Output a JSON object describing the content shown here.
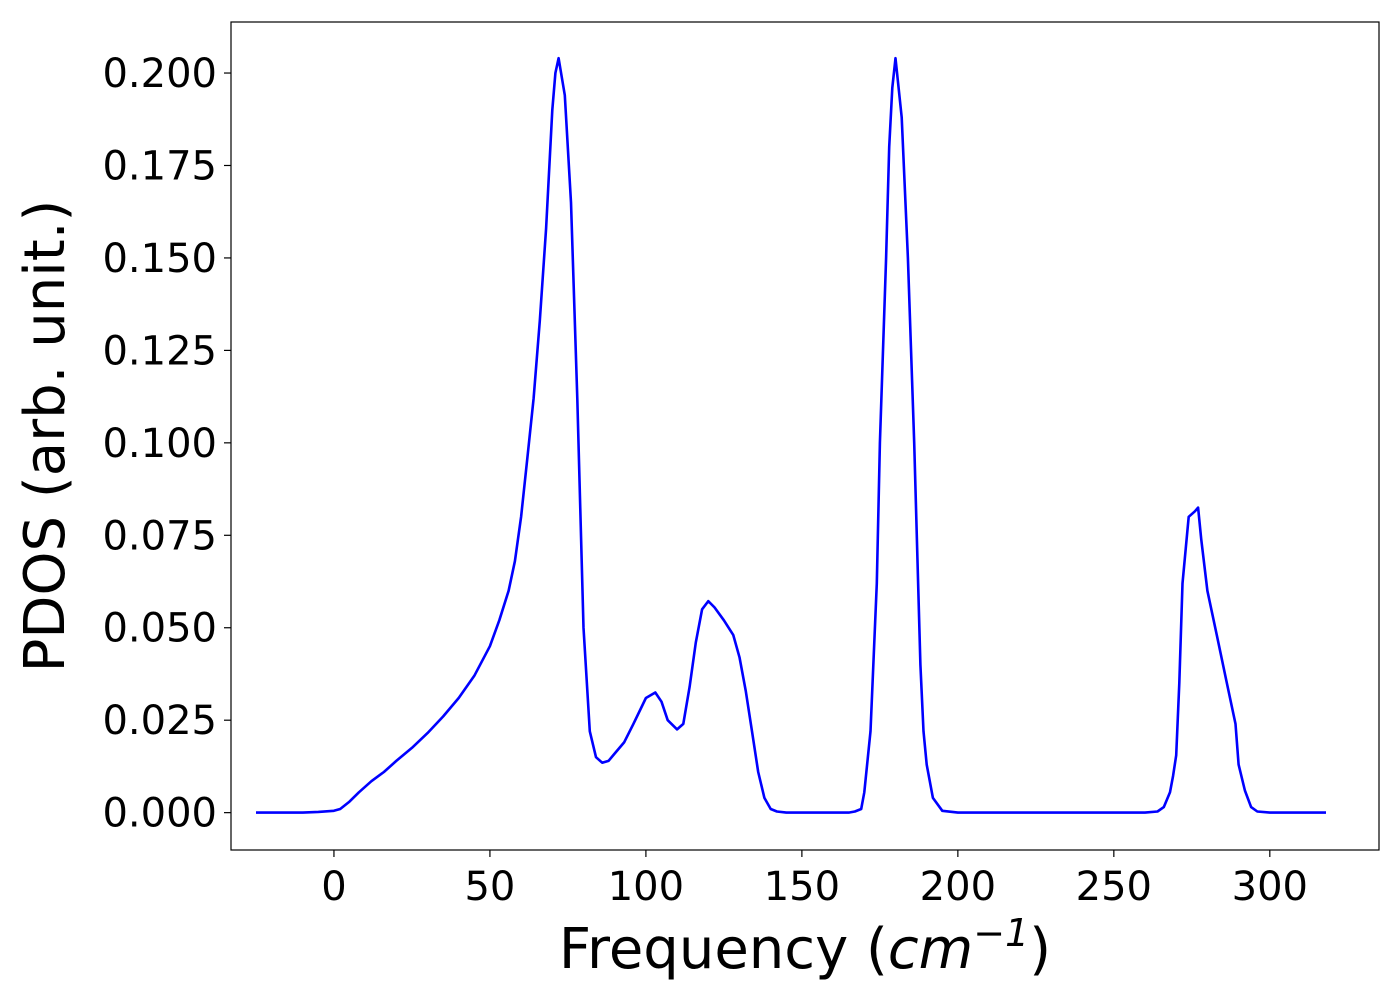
{
  "chart_data": {
    "type": "line",
    "title": "",
    "xlabel": "Frequency",
    "xlabel_unit_base": "cm",
    "xlabel_unit_exp": "−1",
    "ylabel": "PDOS (arb. unit.)",
    "xlim": [
      -33,
      335
    ],
    "ylim": [
      -0.0101,
      0.2138
    ],
    "xticks": [
      0,
      50,
      100,
      150,
      200,
      250,
      300
    ],
    "xtick_labels": [
      "0",
      "50",
      "100",
      "150",
      "200",
      "250",
      "300"
    ],
    "yticks": [
      0.0,
      0.025,
      0.05,
      0.075,
      0.1,
      0.125,
      0.15,
      0.175,
      0.2
    ],
    "ytick_labels": [
      "0.000",
      "0.025",
      "0.050",
      "0.075",
      "0.100",
      "0.125",
      "0.150",
      "0.175",
      "0.200"
    ],
    "grid": false,
    "legend": false,
    "series": [
      {
        "color": "#0000ff",
        "x": [
          -25,
          -10,
          -5,
          0,
          2,
          5,
          8,
          12,
          16,
          20,
          25,
          30,
          35,
          40,
          45,
          50,
          53,
          56,
          58,
          60,
          62,
          64,
          66,
          68,
          70,
          71,
          72,
          74,
          76,
          78,
          80,
          82,
          84,
          86,
          88,
          90,
          93,
          96,
          100,
          103,
          105,
          107,
          110,
          112,
          114,
          116,
          118,
          120,
          122,
          125,
          128,
          130,
          132,
          134,
          136,
          138,
          140,
          142,
          145,
          150,
          160,
          165,
          167,
          169,
          170,
          172,
          174,
          175,
          177,
          178,
          179,
          180,
          182,
          184,
          186,
          188,
          189,
          190,
          192,
          195,
          200,
          210,
          220,
          240,
          260,
          264,
          266,
          268,
          269,
          270,
          271,
          272,
          274,
          276,
          277,
          278,
          280,
          283,
          286,
          289,
          290,
          292,
          294,
          296,
          300,
          310,
          318
        ],
        "y": [
          0.0,
          0.0,
          0.0002,
          0.0005,
          0.001,
          0.003,
          0.0055,
          0.0085,
          0.011,
          0.014,
          0.0175,
          0.0215,
          0.026,
          0.031,
          0.037,
          0.045,
          0.052,
          0.06,
          0.068,
          0.08,
          0.096,
          0.112,
          0.133,
          0.158,
          0.19,
          0.2,
          0.204,
          0.194,
          0.165,
          0.112,
          0.05,
          0.022,
          0.015,
          0.0135,
          0.014,
          0.016,
          0.019,
          0.024,
          0.031,
          0.0325,
          0.03,
          0.025,
          0.0225,
          0.024,
          0.034,
          0.046,
          0.055,
          0.0572,
          0.0555,
          0.052,
          0.048,
          0.042,
          0.033,
          0.022,
          0.011,
          0.004,
          0.001,
          0.0003,
          0.0,
          0.0,
          0.0,
          0.0,
          0.0003,
          0.001,
          0.0055,
          0.022,
          0.062,
          0.1,
          0.15,
          0.18,
          0.196,
          0.204,
          0.188,
          0.15,
          0.1,
          0.04,
          0.022,
          0.013,
          0.004,
          0.0005,
          0.0,
          0.0,
          0.0,
          0.0,
          0.0,
          0.0003,
          0.0015,
          0.0055,
          0.01,
          0.0155,
          0.035,
          0.062,
          0.08,
          0.0815,
          0.0825,
          0.074,
          0.06,
          0.048,
          0.036,
          0.024,
          0.013,
          0.006,
          0.0015,
          0.0003,
          0.0,
          0.0,
          0.0
        ]
      }
    ]
  }
}
